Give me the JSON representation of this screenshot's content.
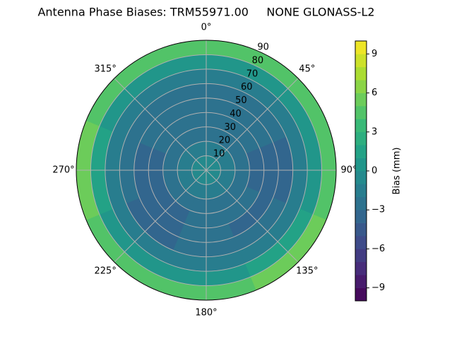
{
  "chart_data": {
    "type": "polar_contour",
    "title": "Antenna Phase Biases: TRM55971.00     NONE GLONASS-L2",
    "colorbar_label": "Bias (mm)",
    "colormap": "viridis",
    "azimuth": [
      0,
      45,
      90,
      135,
      180,
      225,
      270,
      315
    ],
    "zenith": [
      5,
      15,
      25,
      35,
      45,
      55,
      65,
      75,
      85
    ],
    "values": [
      [
        -1,
        -1,
        -1,
        -1,
        -1,
        -1,
        -1,
        -1
      ],
      [
        -2,
        -2,
        -2,
        -2,
        -2,
        -2,
        -2,
        -2
      ],
      [
        -3,
        -3,
        -3,
        -3,
        -3,
        -3,
        -3,
        -3
      ],
      [
        -3,
        -3,
        -4,
        -3,
        -3,
        -4,
        -4,
        -3
      ],
      [
        -3,
        -3,
        -4,
        -4,
        -3,
        -4,
        -4,
        -3
      ],
      [
        -3,
        -3,
        -4,
        -3,
        -3,
        -4,
        -3,
        -3
      ],
      [
        -2,
        -2,
        -2,
        -2,
        -2,
        -2,
        -2,
        -2
      ],
      [
        0,
        0,
        0,
        1,
        0,
        0,
        1,
        0
      ],
      [
        4,
        4,
        4,
        5,
        4,
        4,
        5,
        4
      ]
    ],
    "rlim": [
      0,
      90
    ],
    "rticks": [
      10,
      20,
      30,
      40,
      50,
      60,
      70,
      80,
      90
    ],
    "thetaticks": [
      {
        "value": 0,
        "label": "0°"
      },
      {
        "value": 45,
        "label": "45°"
      },
      {
        "value": 90,
        "label": "90°"
      },
      {
        "value": 135,
        "label": "135°"
      },
      {
        "value": 180,
        "label": "180°"
      },
      {
        "value": 225,
        "label": "225°"
      },
      {
        "value": 270,
        "label": "270°"
      },
      {
        "value": 315,
        "label": "315°"
      }
    ],
    "clim": [
      -10,
      10
    ],
    "cticks": [
      {
        "value": -9,
        "label": "−9"
      },
      {
        "value": -6,
        "label": "−6"
      },
      {
        "value": -3,
        "label": "−3"
      },
      0,
      3,
      6,
      9
    ],
    "grid": true
  }
}
